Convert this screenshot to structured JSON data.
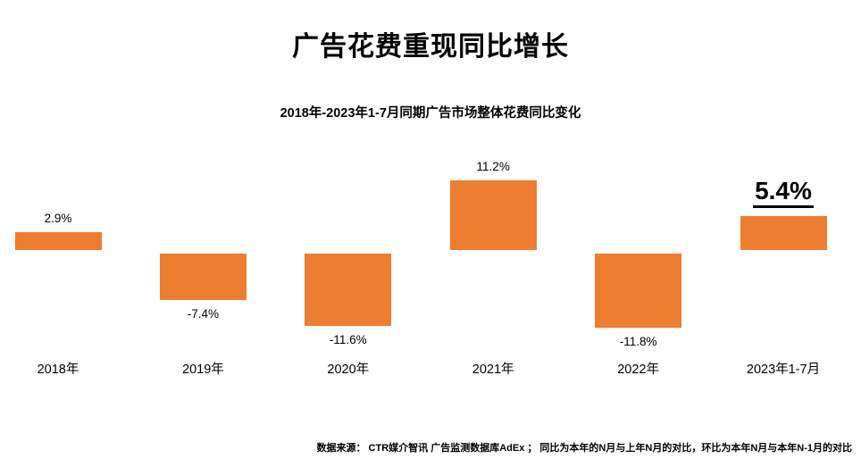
{
  "title": "广告花费重现同比增长",
  "subtitle": "2018年-2023年1-7月同期广告市场整体花费同比变化",
  "footer": "数据来源：  CTR媒介智讯 广告监测数据库AdEx ； 同比为本年的N月与上年N月的对比，环比为本年N月与本年N-1月的对比",
  "chart_data": {
    "type": "bar",
    "title": "广告花费重现同比增长",
    "subtitle": "2018年-2023年1-7月同期广告市场整体花费同比变化",
    "categories": [
      "2018年",
      "2019年",
      "2020年",
      "2021年",
      "2022年",
      "2023年1-7月"
    ],
    "values": [
      2.9,
      -7.4,
      -11.6,
      11.2,
      -11.8,
      5.4
    ],
    "labels": [
      "2.9%",
      "-7.4%",
      "-11.6%",
      "11.2%",
      "-11.8%",
      "5.4%"
    ],
    "highlight_index": 5,
    "bar_color": "#ED7D31",
    "xlabel": "",
    "ylabel": "",
    "ylim": [
      -13,
      13
    ],
    "grid": false,
    "legend": false,
    "axis_lines": false,
    "source_note": "数据来源：  CTR媒介智讯 广告监测数据库AdEx ； 同比为本年的N月与上年N月的对比，环比为本年N月与本年N-1月的对比"
  }
}
